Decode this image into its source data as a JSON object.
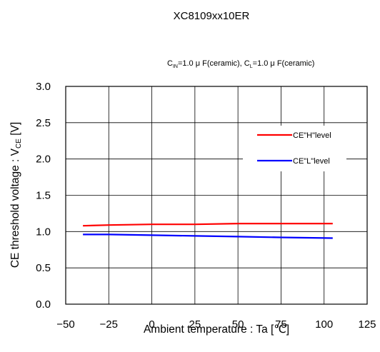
{
  "chart_data": {
    "type": "line",
    "title": "XC8109xx10ER",
    "condition": {
      "cin_label": "C",
      "cin_sub": "IN",
      "cin_value": "=1.0 μ F(ceramic), ",
      "cl_label": "C",
      "cl_sub": "L",
      "cl_value": "=1.0 μ F(ceramic)"
    },
    "xlabel": "Ambient temperature : Ta [℃]",
    "ylabel": {
      "main": "CE threshold voltage : V",
      "sub": "CE",
      "unit": " [V]"
    },
    "xlim": [
      -50,
      125
    ],
    "ylim": [
      0.0,
      3.0
    ],
    "xticks": [
      -50,
      -25,
      0,
      25,
      50,
      75,
      100,
      125
    ],
    "xtick_labels": [
      "−50",
      "−25",
      "0",
      "25",
      "50",
      "75",
      "100",
      "125"
    ],
    "yticks": [
      0.0,
      0.5,
      1.0,
      1.5,
      2.0,
      2.5,
      3.0
    ],
    "ytick_labels": [
      "0.0",
      "0.5",
      "1.0",
      "1.5",
      "2.0",
      "2.5",
      "3.0"
    ],
    "grid": true,
    "legend_position": "right-upper",
    "series": [
      {
        "name": "CE\"H\"level",
        "color": "#ff0000",
        "x": [
          -40,
          -25,
          0,
          25,
          50,
          75,
          105
        ],
        "y": [
          1.08,
          1.09,
          1.1,
          1.1,
          1.11,
          1.11,
          1.11
        ]
      },
      {
        "name": "CE\"L\"level",
        "color": "#0000ff",
        "x": [
          -40,
          -25,
          0,
          25,
          50,
          75,
          105
        ],
        "y": [
          0.96,
          0.96,
          0.95,
          0.94,
          0.93,
          0.92,
          0.91
        ]
      }
    ]
  }
}
